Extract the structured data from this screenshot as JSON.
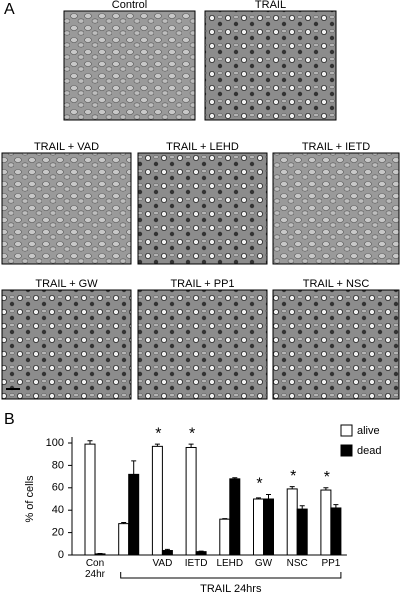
{
  "panel_a": {
    "label": "A",
    "images": [
      {
        "label": "Control"
      },
      {
        "label": "TRAIL"
      },
      {
        "label": "TRAIL + VAD"
      },
      {
        "label": "TRAIL + LEHD"
      },
      {
        "label": "TRAIL + IETD"
      },
      {
        "label": "TRAIL + GW"
      },
      {
        "label": "TRAIL + PP1"
      },
      {
        "label": "TRAIL + NSC"
      }
    ]
  },
  "panel_b_label": "B",
  "chart_data": {
    "type": "bar",
    "ylabel": "% of cells",
    "categories": [
      "Con 24hr",
      null,
      "VAD",
      "IETD",
      "LEHD",
      "GW",
      "NSC",
      "PP1"
    ],
    "series": [
      {
        "name": "alive",
        "color": "#ffffff",
        "values": [
          99,
          28,
          97,
          96,
          32,
          50,
          59,
          58
        ],
        "errors": [
          3,
          1,
          2,
          3,
          0.5,
          1,
          2,
          2
        ]
      },
      {
        "name": "dead",
        "color": "#000000",
        "values": [
          1,
          72,
          4,
          3,
          68,
          50,
          41,
          42
        ],
        "errors": [
          0.3,
          12,
          1,
          0.5,
          1,
          4,
          3,
          3
        ]
      }
    ],
    "ylim": [
      0,
      100
    ],
    "yticks": [
      0,
      20,
      40,
      60,
      80,
      100
    ],
    "annotations": [
      {
        "text": "*",
        "category": "VAD"
      },
      {
        "text": "*",
        "category": "IETD"
      },
      {
        "text": "*",
        "category": "GW"
      },
      {
        "text": "*",
        "category": "NSC"
      },
      {
        "text": "*",
        "category": "PP1"
      }
    ],
    "group_label": "TRAIL 24hrs",
    "legend": "top-right"
  }
}
